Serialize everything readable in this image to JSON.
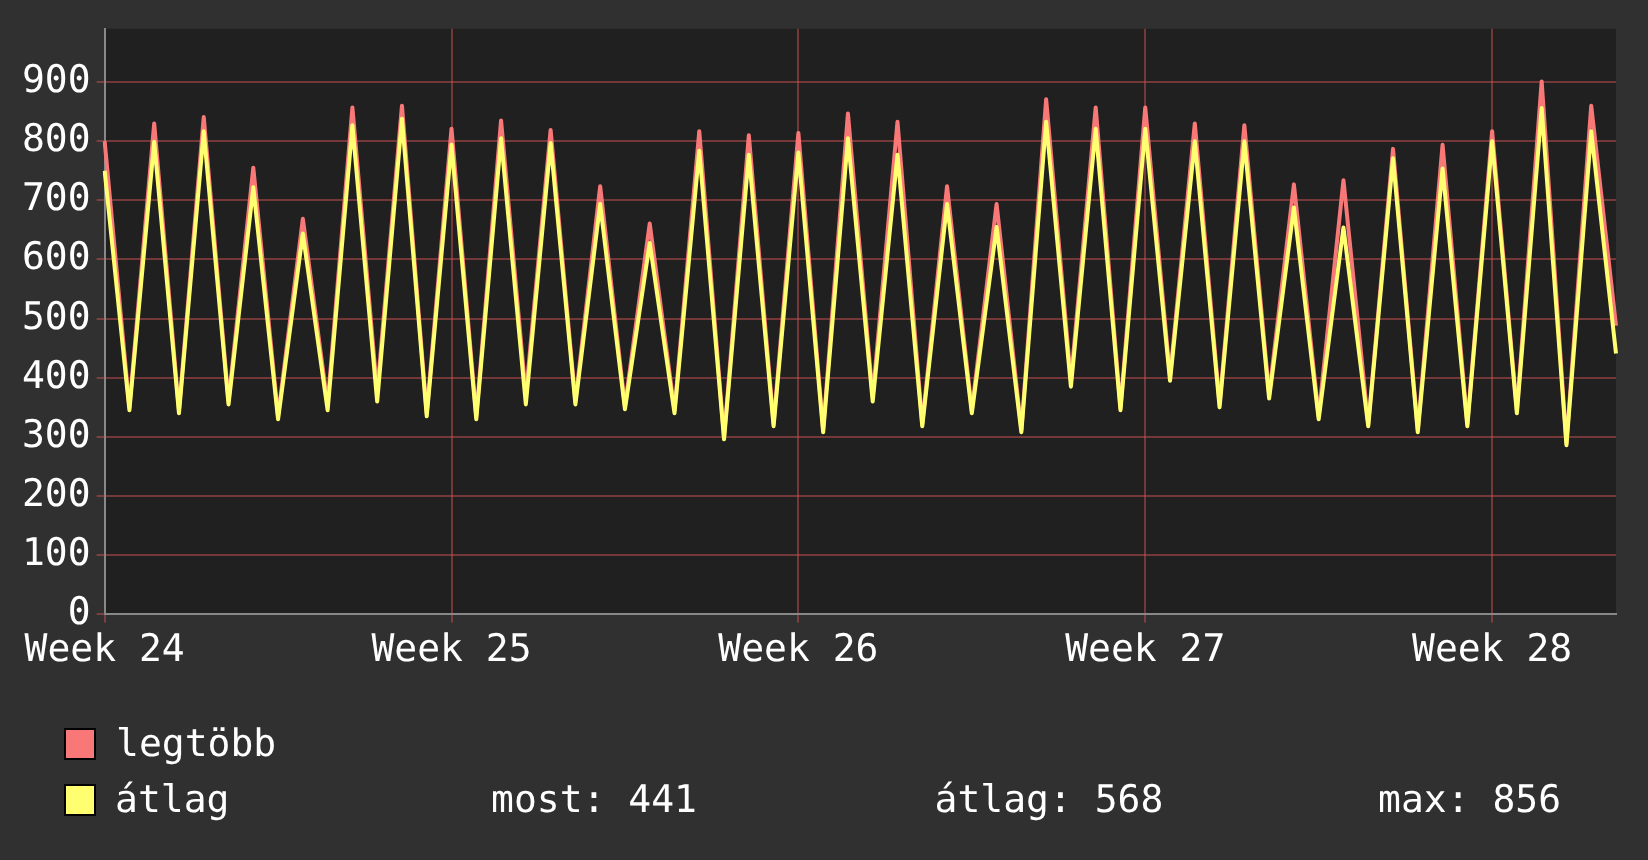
{
  "chart_data": {
    "type": "line",
    "categories": [
      "Week 24",
      null,
      null,
      null,
      null,
      null,
      null,
      null,
      null,
      null,
      null,
      null,
      null,
      null,
      "Week 25",
      null,
      null,
      null,
      null,
      null,
      null,
      null,
      null,
      null,
      null,
      null,
      null,
      null,
      "Week 26",
      null,
      null,
      null,
      null,
      null,
      null,
      null,
      null,
      null,
      null,
      null,
      null,
      null,
      "Week 27",
      null,
      null,
      null,
      null,
      null,
      null,
      null,
      null,
      null,
      null,
      null,
      null,
      null,
      "Week 28",
      null,
      null,
      null,
      null,
      null
    ],
    "series": [
      {
        "name": "legtöbb",
        "color": "#f87878",
        "values": [
          800,
          350,
          830,
          345,
          841,
          360,
          755,
          335,
          669,
          355,
          857,
          375,
          860,
          340,
          821,
          335,
          835,
          370,
          819,
          360,
          724,
          352,
          661,
          345,
          817,
          299,
          810,
          322,
          814,
          312,
          847,
          368,
          833,
          322,
          724,
          345,
          694,
          312,
          871,
          395,
          857,
          349,
          857,
          402,
          830,
          355,
          827,
          372,
          727,
          335,
          734,
          322,
          787,
          312,
          794,
          322,
          817,
          345,
          901,
          289,
          860,
          488
        ]
      },
      {
        "name": "átlag",
        "color": "#ffff70",
        "values": [
          750,
          345,
          799,
          340,
          817,
          355,
          722,
          330,
          644,
          345,
          827,
          360,
          838,
          335,
          794,
          330,
          805,
          355,
          797,
          355,
          694,
          347,
          628,
          340,
          784,
          296,
          777,
          318,
          781,
          308,
          805,
          360,
          777,
          318,
          694,
          340,
          655,
          308,
          833,
          385,
          821,
          345,
          821,
          395,
          800,
          350,
          800,
          365,
          688,
          330,
          654,
          318,
          771,
          308,
          754,
          318,
          800,
          340,
          856,
          286,
          817,
          441
        ]
      }
    ],
    "ylim": [
      0,
      990
    ],
    "yticks": [
      0,
      100,
      200,
      300,
      400,
      500,
      600,
      700,
      800,
      900
    ],
    "grid": true,
    "legend": "bottom",
    "marker": "none",
    "line_style": "solid",
    "annotations": [
      "most: 441",
      "átlag: 568",
      "max: 856"
    ]
  }
}
